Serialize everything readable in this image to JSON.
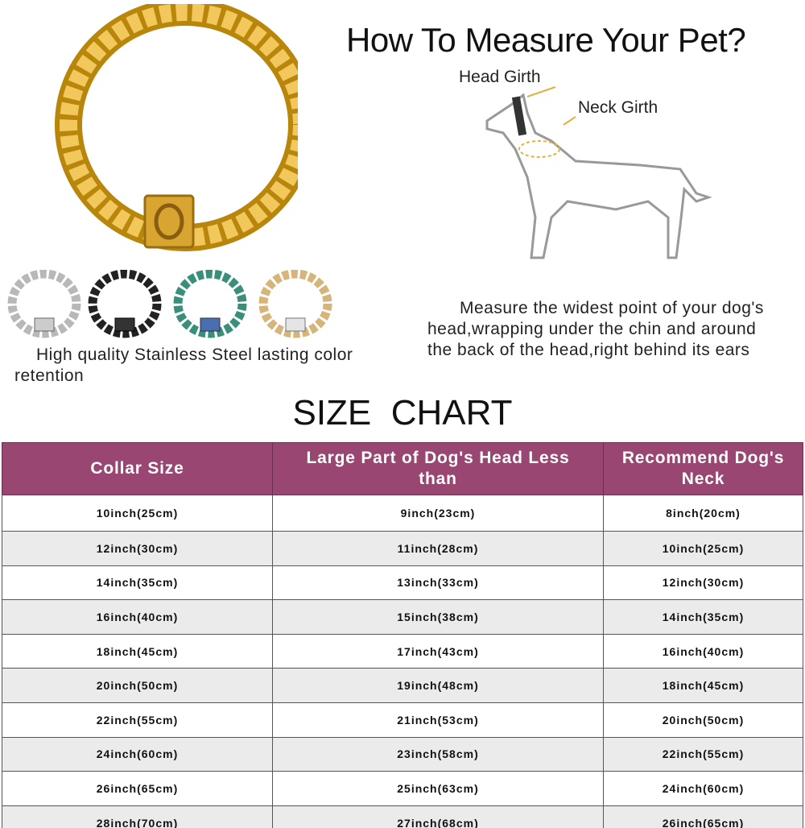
{
  "header": {
    "title": "How To Measure Your Pet?"
  },
  "diagram": {
    "head_girth_label": "Head Girth",
    "neck_girth_label": "Neck Girth"
  },
  "product": {
    "main_color": "gold",
    "variants": [
      "silver",
      "black",
      "rainbow",
      "gold"
    ],
    "caption": "High quality Stainless Steel lasting color retention"
  },
  "instructions": "Measure the widest point of your dog's head,wrapping under the chin and around the back of the head,right behind its ears",
  "size_chart": {
    "title": "SIZE  CHART",
    "header_color": "#9a4672",
    "columns": [
      "Collar Size",
      "Large Part of Dog's Head Less than",
      "Recommend Dog's Neck"
    ],
    "rows": [
      [
        "10inch(25cm)",
        "9inch(23cm)",
        "8inch(20cm)"
      ],
      [
        "12inch(30cm)",
        "11inch(28cm)",
        "10inch(25cm)"
      ],
      [
        "14inch(35cm)",
        "13inch(33cm)",
        "12inch(30cm)"
      ],
      [
        "16inch(40cm)",
        "15inch(38cm)",
        "14inch(35cm)"
      ],
      [
        "18inch(45cm)",
        "17inch(43cm)",
        "16inch(40cm)"
      ],
      [
        "20inch(50cm)",
        "19inch(48cm)",
        "18inch(45cm)"
      ],
      [
        "22inch(55cm)",
        "21inch(53cm)",
        "20inch(50cm)"
      ],
      [
        "24inch(60cm)",
        "23inch(58cm)",
        "22inch(55cm)"
      ],
      [
        "26inch(65cm)",
        "25inch(63cm)",
        "24inch(60cm)"
      ],
      [
        "28inch(70cm)",
        "27inch(68cm)",
        "26inch(65cm)"
      ]
    ]
  }
}
